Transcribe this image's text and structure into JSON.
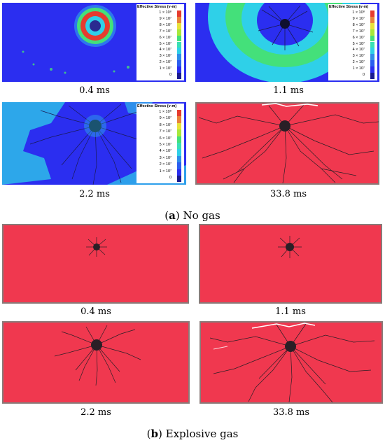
{
  "colors": {
    "rock": "#f0384f",
    "rock_border": "#8a7a78",
    "crack": "#2a1f26",
    "stress_low": "#2b2ef0",
    "stress_mid": "#2fd0e8",
    "stress_green": "#44e07a",
    "stress_yellow": "#e8e23a",
    "stress_red": "#e63b2e"
  },
  "section_a": {
    "label_letter": "a",
    "label_text": "No gas",
    "legend_title": "Effective Stress (v-m)",
    "legend_labels": [
      "1 × 10⁸",
      "9 × 10⁷",
      "8 × 10⁷",
      "7 × 10⁷",
      "6 × 10⁷",
      "5 × 10⁷",
      "4 × 10⁷",
      "3 × 10⁷",
      "2 × 10⁷",
      "1 × 10⁷",
      "0"
    ],
    "panels": [
      {
        "time": "0.4 ms",
        "kind": "stress-early"
      },
      {
        "time": "1.1 ms",
        "kind": "stress-spread"
      },
      {
        "time": "2.2 ms",
        "kind": "stress-late"
      },
      {
        "time": "33.8 ms",
        "kind": "crack"
      }
    ]
  },
  "section_b": {
    "label_letter": "b",
    "label_text": "Explosive gas",
    "panels": [
      {
        "time": "0.4 ms",
        "kind": "crack-small"
      },
      {
        "time": "1.1 ms",
        "kind": "crack-small"
      },
      {
        "time": "2.2 ms",
        "kind": "crack-mid"
      },
      {
        "time": "33.8 ms",
        "kind": "crack-full"
      }
    ]
  }
}
